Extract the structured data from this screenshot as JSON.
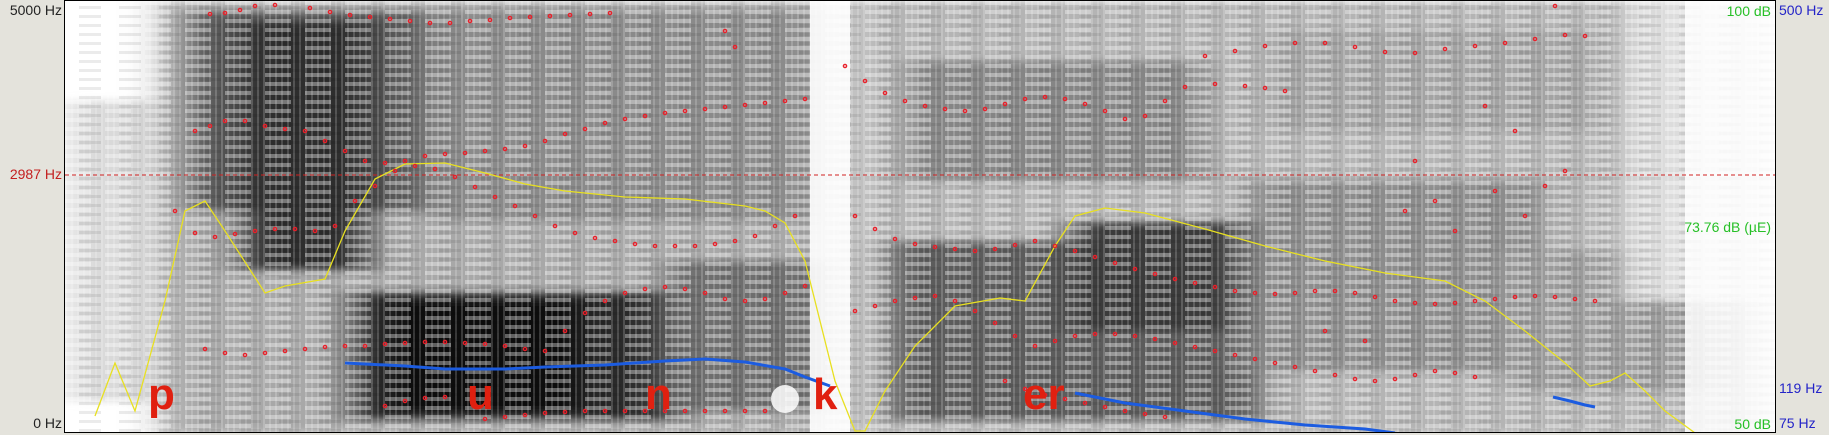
{
  "left_axis": {
    "top": "5000 Hz",
    "cursor": "2987 Hz",
    "bottom": "0 Hz"
  },
  "right_axis": {
    "intensity_top": "100 dB",
    "pitch_top": "500 Hz",
    "intensity_mid": "73.76 dB (µE)",
    "pitch_mid": "119 Hz",
    "intensity_bottom": "50 dB",
    "pitch_bottom": "75 Hz"
  },
  "segments": [
    "p",
    "u",
    "n",
    "k",
    "er"
  ],
  "colors": {
    "formant": "#e8202a",
    "pitch": "#1c5ce0",
    "intensity": "#e8e020",
    "cursor": "#d02020",
    "segment": "#e02010"
  }
}
